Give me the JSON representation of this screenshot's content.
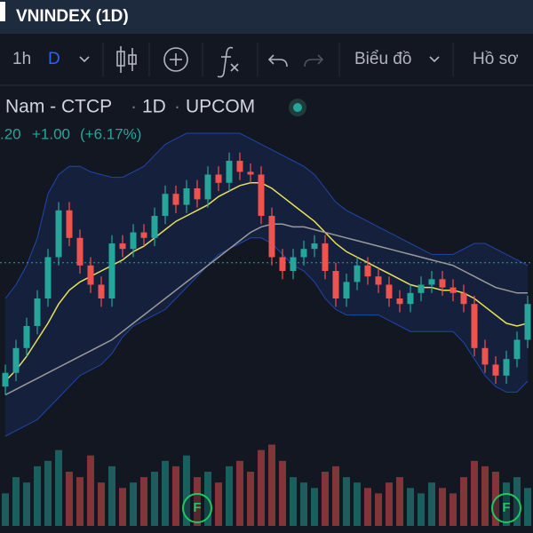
{
  "header": {
    "title": "VNINDEX (1D)"
  },
  "toolbar": {
    "interval": "1h",
    "period": "D",
    "chart_menu": "Biểu đồ",
    "profile_menu": "Hồ sơ"
  },
  "legend": {
    "name": "Nam - CTCP",
    "resolution": "1D",
    "exchange": "UPCOM",
    "last": ".20",
    "change": "+1.00",
    "change_pct": "(+6.17%)"
  },
  "chart_data": {
    "type": "candlestick",
    "up_color": "#26a69a",
    "down_color": "#ef5350",
    "ylim": [
      0,
      100
    ],
    "opens": [
      8,
      13,
      22,
      30,
      40,
      55,
      72,
      62,
      52,
      45,
      40,
      60,
      58,
      64,
      62,
      70,
      78,
      74,
      80,
      76,
      85,
      82,
      90,
      86,
      85,
      70,
      55,
      50,
      55,
      58,
      60,
      50,
      40,
      46,
      52,
      48,
      45,
      40,
      38,
      42,
      45,
      47,
      44,
      42,
      38,
      22,
      16,
      12,
      18,
      25
    ],
    "highs": [
      16,
      25,
      33,
      43,
      58,
      75,
      75,
      65,
      55,
      48,
      63,
      63,
      67,
      67,
      73,
      81,
      81,
      83,
      83,
      88,
      88,
      93,
      93,
      89,
      88,
      73,
      58,
      58,
      61,
      63,
      63,
      53,
      49,
      55,
      55,
      51,
      48,
      43,
      45,
      48,
      50,
      50,
      47,
      45,
      41,
      25,
      19,
      21,
      28,
      41
    ],
    "lows": [
      5,
      10,
      19,
      27,
      37,
      52,
      59,
      49,
      42,
      37,
      37,
      55,
      55,
      59,
      59,
      67,
      71,
      71,
      73,
      73,
      79,
      79,
      83,
      82,
      67,
      52,
      47,
      47,
      52,
      55,
      47,
      37,
      37,
      43,
      45,
      42,
      37,
      35,
      35,
      39,
      42,
      41,
      39,
      35,
      19,
      13,
      9,
      9,
      15,
      22
    ],
    "closes": [
      13,
      22,
      30,
      40,
      55,
      72,
      62,
      52,
      45,
      40,
      60,
      58,
      64,
      62,
      70,
      78,
      74,
      80,
      76,
      85,
      82,
      90,
      86,
      85,
      70,
      55,
      50,
      55,
      58,
      60,
      50,
      40,
      46,
      52,
      48,
      45,
      40,
      38,
      42,
      45,
      47,
      44,
      42,
      38,
      22,
      16,
      12,
      18,
      25,
      38
    ],
    "lines": [
      {
        "color": "#e8e05a",
        "values": [
          10,
          14,
          19,
          25,
          31,
          38,
          43,
          46,
          48,
          50,
          52,
          54,
          57,
          59,
          62,
          65,
          68,
          70,
          72,
          74,
          77,
          79,
          81,
          82,
          82,
          80,
          77,
          74,
          71,
          68,
          64,
          60,
          57,
          55,
          53,
          51,
          49,
          47,
          45,
          44,
          44,
          43,
          43,
          42,
          40,
          37,
          34,
          31,
          30,
          31
        ]
      },
      {
        "color": "#9a9a9a",
        "values": [
          5,
          7,
          9,
          11,
          13,
          15,
          17,
          19,
          21,
          23,
          25,
          28,
          31,
          34,
          37,
          40,
          43,
          46,
          49,
          52,
          55,
          58,
          61,
          64,
          66,
          67,
          67,
          66,
          66,
          65,
          64,
          63,
          62,
          61,
          60,
          59,
          58,
          57,
          56,
          55,
          54,
          53,
          52,
          50,
          48,
          46,
          44,
          43,
          42,
          42
        ]
      }
    ],
    "band": {
      "color": "#2962ff",
      "upper": [
        40,
        45,
        52,
        62,
        78,
        85,
        88,
        88,
        86,
        85,
        84,
        84,
        86,
        88,
        92,
        96,
        98,
        100,
        100,
        100,
        100,
        100,
        100,
        98,
        96,
        94,
        92,
        90,
        88,
        85,
        80,
        75,
        72,
        70,
        68,
        66,
        64,
        62,
        60,
        58,
        56,
        56,
        56,
        58,
        60,
        60,
        58,
        56,
        54,
        52
      ],
      "lower": [
        -10,
        -8,
        -6,
        -4,
        0,
        4,
        8,
        12,
        14,
        16,
        20,
        26,
        30,
        32,
        34,
        36,
        40,
        44,
        48,
        52,
        56,
        58,
        60,
        62,
        62,
        60,
        56,
        52,
        50,
        46,
        40,
        36,
        34,
        34,
        34,
        34,
        32,
        30,
        28,
        28,
        28,
        28,
        28,
        24,
        18,
        12,
        8,
        6,
        6,
        10
      ]
    },
    "price_line": 53,
    "volume": {
      "ylim": [
        0,
        100
      ],
      "values": [
        30,
        45,
        40,
        55,
        60,
        70,
        50,
        45,
        65,
        40,
        55,
        35,
        40,
        45,
        50,
        60,
        55,
        65,
        45,
        50,
        40,
        55,
        60,
        50,
        70,
        75,
        60,
        45,
        40,
        35,
        50,
        55,
        45,
        40,
        35,
        30,
        40,
        45,
        35,
        30,
        40,
        35,
        30,
        45,
        60,
        55,
        50,
        40,
        45,
        35
      ]
    },
    "markers": [
      {
        "label": "F",
        "index": 18
      },
      {
        "label": "F",
        "index": 47
      }
    ]
  }
}
